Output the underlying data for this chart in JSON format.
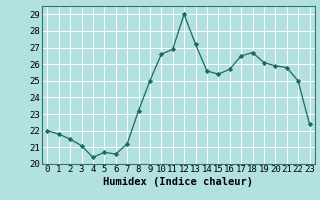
{
  "x": [
    0,
    1,
    2,
    3,
    4,
    5,
    6,
    7,
    8,
    9,
    10,
    11,
    12,
    13,
    14,
    15,
    16,
    17,
    18,
    19,
    20,
    21,
    22,
    23
  ],
  "y": [
    22.0,
    21.8,
    21.5,
    21.1,
    20.4,
    20.7,
    20.6,
    21.2,
    23.2,
    25.0,
    26.6,
    26.9,
    29.0,
    27.2,
    25.6,
    25.4,
    25.7,
    26.5,
    26.7,
    26.1,
    25.9,
    25.8,
    25.0,
    22.4
  ],
  "line_color": "#1a6b5a",
  "marker": "D",
  "marker_size": 2.2,
  "background_color": "#b3e0e0",
  "grid_color": "#ffffff",
  "xlabel": "Humidex (Indice chaleur)",
  "xlim": [
    -0.5,
    23.5
  ],
  "ylim": [
    20,
    29.5
  ],
  "yticks": [
    20,
    21,
    22,
    23,
    24,
    25,
    26,
    27,
    28,
    29
  ],
  "xticks": [
    0,
    1,
    2,
    3,
    4,
    5,
    6,
    7,
    8,
    9,
    10,
    11,
    12,
    13,
    14,
    15,
    16,
    17,
    18,
    19,
    20,
    21,
    22,
    23
  ],
  "xlabel_fontsize": 7.5,
  "tick_fontsize": 6.5
}
